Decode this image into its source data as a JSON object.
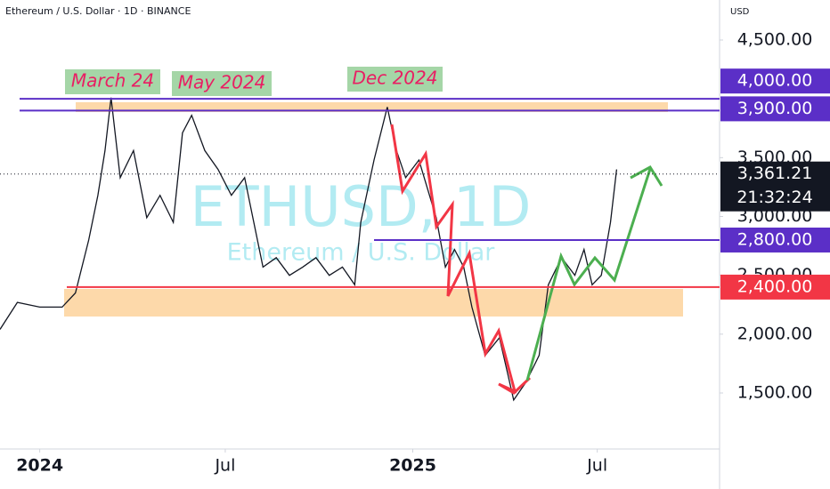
{
  "header": "Ethereum / U.S. Dollar · 1D · BINANCE",
  "currency": "USD",
  "watermark": {
    "symbol": "ETHUSD, 1D",
    "name": "Ethereum / U.S. Dollar"
  },
  "chart_data": {
    "type": "line",
    "x": [
      -39,
      -22,
      0,
      22,
      35,
      48,
      57,
      64,
      70,
      79,
      92,
      105,
      118,
      131,
      140,
      149,
      162,
      175,
      188,
      201,
      210,
      219,
      232,
      245,
      258,
      271,
      284,
      297,
      309,
      315,
      328,
      341,
      350,
      359,
      372,
      381,
      389,
      398,
      407,
      416,
      424,
      437,
      451,
      459,
      465,
      477,
      490,
      499,
      512,
      525,
      534,
      542,
      551,
      560,
      566
    ],
    "series": [
      {
        "color": "#131722",
        "values": [
          2040,
          2270,
          2230,
          2230,
          2350,
          2800,
          3180,
          3560,
          4010,
          3330,
          3560,
          2990,
          3180,
          2950,
          3710,
          3860,
          3560,
          3400,
          3180,
          3330,
          2950,
          2570,
          2650,
          2500,
          2570,
          2650,
          2500,
          2570,
          2420,
          2950,
          3480,
          3930,
          3560,
          3330,
          3480,
          3220,
          2990,
          2570,
          2720,
          2570,
          2230,
          1820,
          1970,
          1670,
          1440,
          1590,
          1820,
          2420,
          2650,
          2500,
          2720,
          2420,
          2500,
          2950,
          3400
        ]
      }
    ],
    "xlim": [
      -39,
      667
    ],
    "xticks": [
      {
        "value": 0,
        "label": "2024"
      },
      {
        "value": 182,
        "label": "Jul"
      },
      {
        "value": 366,
        "label": "2025"
      },
      {
        "value": 547,
        "label": "Jul"
      }
    ],
    "ylim": [
      1024,
      4840
    ],
    "yticks": [
      {
        "value": 1500,
        "label": "1,500.00"
      },
      {
        "value": 2000,
        "label": "2,000.00"
      },
      {
        "value": 2500,
        "label": "2,500.00"
      },
      {
        "value": 3000,
        "label": "3,000.00"
      },
      {
        "value": 3500,
        "label": "3,500.00"
      },
      {
        "value": 4500,
        "label": "4,500.00"
      }
    ],
    "levels": [
      {
        "value": 4000,
        "label": "4,000.00",
        "color": "#5b2fc7"
      },
      {
        "value": 3900,
        "label": "3,900.00",
        "color": "#5b2fc7"
      },
      {
        "value": 2800,
        "label": "2,800.00",
        "color": "#5b2fc7"
      },
      {
        "value": 2400,
        "label": "2,400.00",
        "color": "#f23645"
      }
    ],
    "last_price": {
      "value": 3361.21,
      "label": "3,361.21"
    },
    "countdown": "21:32:24",
    "annotations": [
      "March 24",
      "May 2024",
      "Dec 2024"
    ]
  }
}
